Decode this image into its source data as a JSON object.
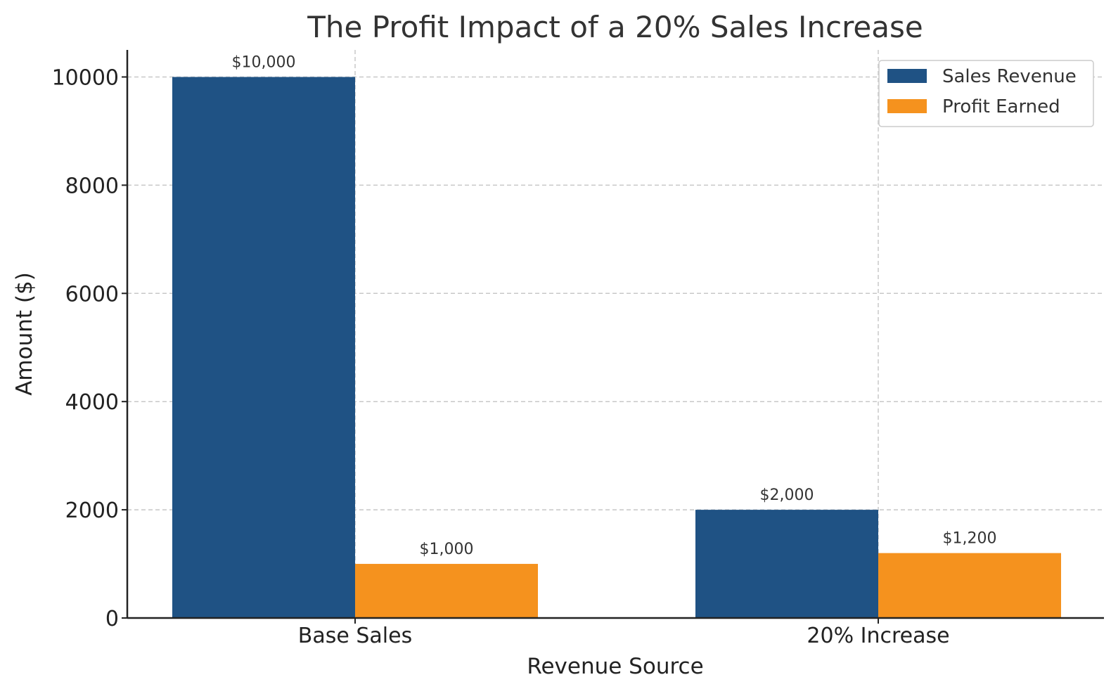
{
  "chart_data": {
    "type": "bar",
    "title": "The Profit Impact of a 20% Sales Increase",
    "xlabel": "Revenue Source",
    "ylabel": "Amount ($)",
    "categories": [
      "Base Sales",
      "20% Increase"
    ],
    "series": [
      {
        "name": "Sales Revenue",
        "values": [
          10000,
          2000
        ],
        "labels": [
          "$10,000",
          "$2,000"
        ],
        "color": "#1f5284"
      },
      {
        "name": "Profit Earned",
        "values": [
          1000,
          1200
        ],
        "labels": [
          "$1,000",
          "$1,200"
        ],
        "color": "#f5921e"
      }
    ],
    "ylim": [
      0,
      10500
    ],
    "yticks": [
      0,
      2000,
      4000,
      6000,
      8000,
      10000
    ],
    "ytick_labels": [
      "0",
      "2000",
      "4000",
      "6000",
      "8000",
      "10000"
    ],
    "grid": true,
    "legend_position": "top-right"
  }
}
